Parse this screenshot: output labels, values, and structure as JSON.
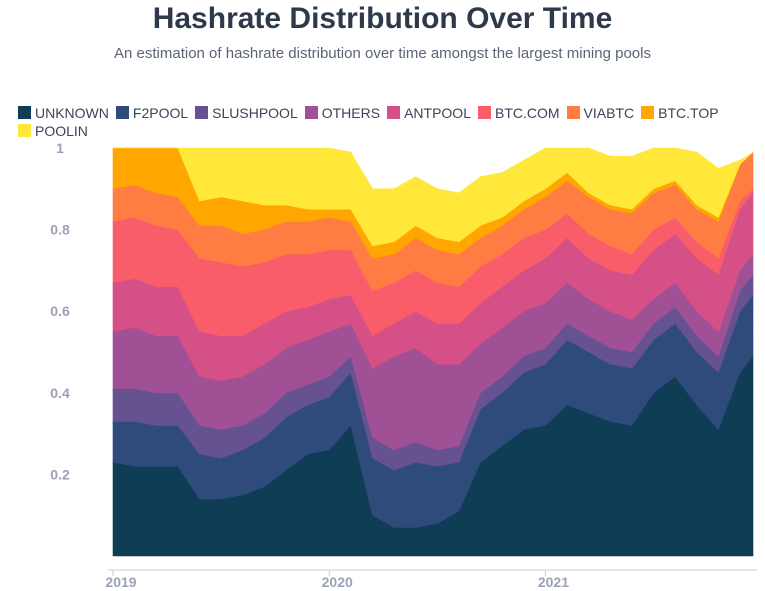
{
  "chart_data": {
    "type": "area",
    "stacked": true,
    "normalized": true,
    "title": "Hashrate Distribution Over Time",
    "subtitle": "An estimation of hashrate distribution over time amongst the largest mining pools",
    "xlabel": "",
    "ylabel": "",
    "ylim": [
      0,
      1
    ],
    "yticks": [
      "0.2",
      "0.4",
      "0.6",
      "0.8",
      "1"
    ],
    "xticks": [
      "2019",
      "2020",
      "2021"
    ],
    "legend_position": "top-left",
    "x": [
      2019.0,
      2019.1,
      2019.2,
      2019.3,
      2019.4,
      2019.5,
      2019.6,
      2019.7,
      2019.8,
      2019.9,
      2020.0,
      2020.1,
      2020.2,
      2020.3,
      2020.4,
      2020.5,
      2020.6,
      2020.7,
      2020.8,
      2020.9,
      2021.0,
      2021.1,
      2021.2,
      2021.3,
      2021.4,
      2021.5,
      2021.6,
      2021.7,
      2021.8,
      2021.9,
      2021.96
    ],
    "series": [
      {
        "name": "UNKNOWN",
        "color": "#0f3d56",
        "values": [
          0.23,
          0.22,
          0.22,
          0.22,
          0.14,
          0.14,
          0.15,
          0.17,
          0.21,
          0.25,
          0.26,
          0.32,
          0.1,
          0.07,
          0.07,
          0.08,
          0.11,
          0.23,
          0.27,
          0.31,
          0.32,
          0.37,
          0.35,
          0.33,
          0.32,
          0.4,
          0.44,
          0.37,
          0.31,
          0.45,
          0.49
        ]
      },
      {
        "name": "F2POOL",
        "color": "#2f4b7c",
        "values": [
          0.1,
          0.11,
          0.1,
          0.1,
          0.11,
          0.1,
          0.11,
          0.12,
          0.13,
          0.12,
          0.13,
          0.13,
          0.14,
          0.14,
          0.16,
          0.14,
          0.12,
          0.13,
          0.13,
          0.14,
          0.15,
          0.16,
          0.15,
          0.14,
          0.14,
          0.13,
          0.13,
          0.13,
          0.14,
          0.15,
          0.15
        ]
      },
      {
        "name": "SLUSHPOOL",
        "color": "#665191",
        "values": [
          0.08,
          0.08,
          0.08,
          0.08,
          0.07,
          0.07,
          0.06,
          0.06,
          0.06,
          0.05,
          0.05,
          0.04,
          0.05,
          0.05,
          0.05,
          0.04,
          0.04,
          0.04,
          0.04,
          0.04,
          0.04,
          0.04,
          0.04,
          0.04,
          0.04,
          0.04,
          0.04,
          0.04,
          0.04,
          0.05,
          0.05
        ]
      },
      {
        "name": "OTHERS",
        "color": "#a05195",
        "values": [
          0.14,
          0.15,
          0.14,
          0.14,
          0.12,
          0.12,
          0.12,
          0.12,
          0.11,
          0.11,
          0.11,
          0.08,
          0.17,
          0.23,
          0.23,
          0.21,
          0.2,
          0.12,
          0.12,
          0.11,
          0.11,
          0.1,
          0.09,
          0.09,
          0.08,
          0.06,
          0.06,
          0.06,
          0.06,
          0.05,
          0.05
        ]
      },
      {
        "name": "ANTPOOL",
        "color": "#d45087",
        "values": [
          0.12,
          0.12,
          0.12,
          0.12,
          0.11,
          0.11,
          0.1,
          0.1,
          0.09,
          0.08,
          0.08,
          0.07,
          0.08,
          0.08,
          0.09,
          0.1,
          0.1,
          0.1,
          0.1,
          0.1,
          0.11,
          0.11,
          0.1,
          0.1,
          0.11,
          0.12,
          0.12,
          0.13,
          0.14,
          0.15,
          0.15
        ]
      },
      {
        "name": "BTC.COM",
        "color": "#f95d6a",
        "values": [
          0.15,
          0.15,
          0.15,
          0.14,
          0.18,
          0.18,
          0.17,
          0.15,
          0.14,
          0.13,
          0.12,
          0.11,
          0.11,
          0.1,
          0.1,
          0.1,
          0.09,
          0.09,
          0.08,
          0.08,
          0.07,
          0.06,
          0.06,
          0.06,
          0.05,
          0.05,
          0.04,
          0.04,
          0.04,
          0.02,
          0.01
        ]
      },
      {
        "name": "VIABTC",
        "color": "#ff7c43",
        "values": [
          0.08,
          0.08,
          0.08,
          0.08,
          0.08,
          0.09,
          0.08,
          0.08,
          0.08,
          0.08,
          0.08,
          0.07,
          0.08,
          0.07,
          0.08,
          0.08,
          0.08,
          0.07,
          0.07,
          0.07,
          0.08,
          0.08,
          0.09,
          0.09,
          0.1,
          0.09,
          0.08,
          0.08,
          0.09,
          0.09,
          0.09
        ]
      },
      {
        "name": "BTC.TOP",
        "color": "#ffa600",
        "values": [
          0.1,
          0.09,
          0.11,
          0.12,
          0.06,
          0.07,
          0.08,
          0.06,
          0.04,
          0.03,
          0.02,
          0.03,
          0.03,
          0.03,
          0.03,
          0.03,
          0.03,
          0.03,
          0.02,
          0.02,
          0.02,
          0.02,
          0.01,
          0.01,
          0.01,
          0.01,
          0.01,
          0.01,
          0.01,
          0.0,
          0.0
        ]
      },
      {
        "name": "POOLIN",
        "color": "#ffe83a",
        "values": [
          0.0,
          0.0,
          0.0,
          0.0,
          0.13,
          0.12,
          0.13,
          0.14,
          0.14,
          0.15,
          0.15,
          0.14,
          0.14,
          0.13,
          0.12,
          0.12,
          0.12,
          0.12,
          0.11,
          0.1,
          0.1,
          0.1,
          0.11,
          0.12,
          0.13,
          0.12,
          0.12,
          0.13,
          0.12,
          0.01,
          0.0
        ]
      }
    ]
  }
}
